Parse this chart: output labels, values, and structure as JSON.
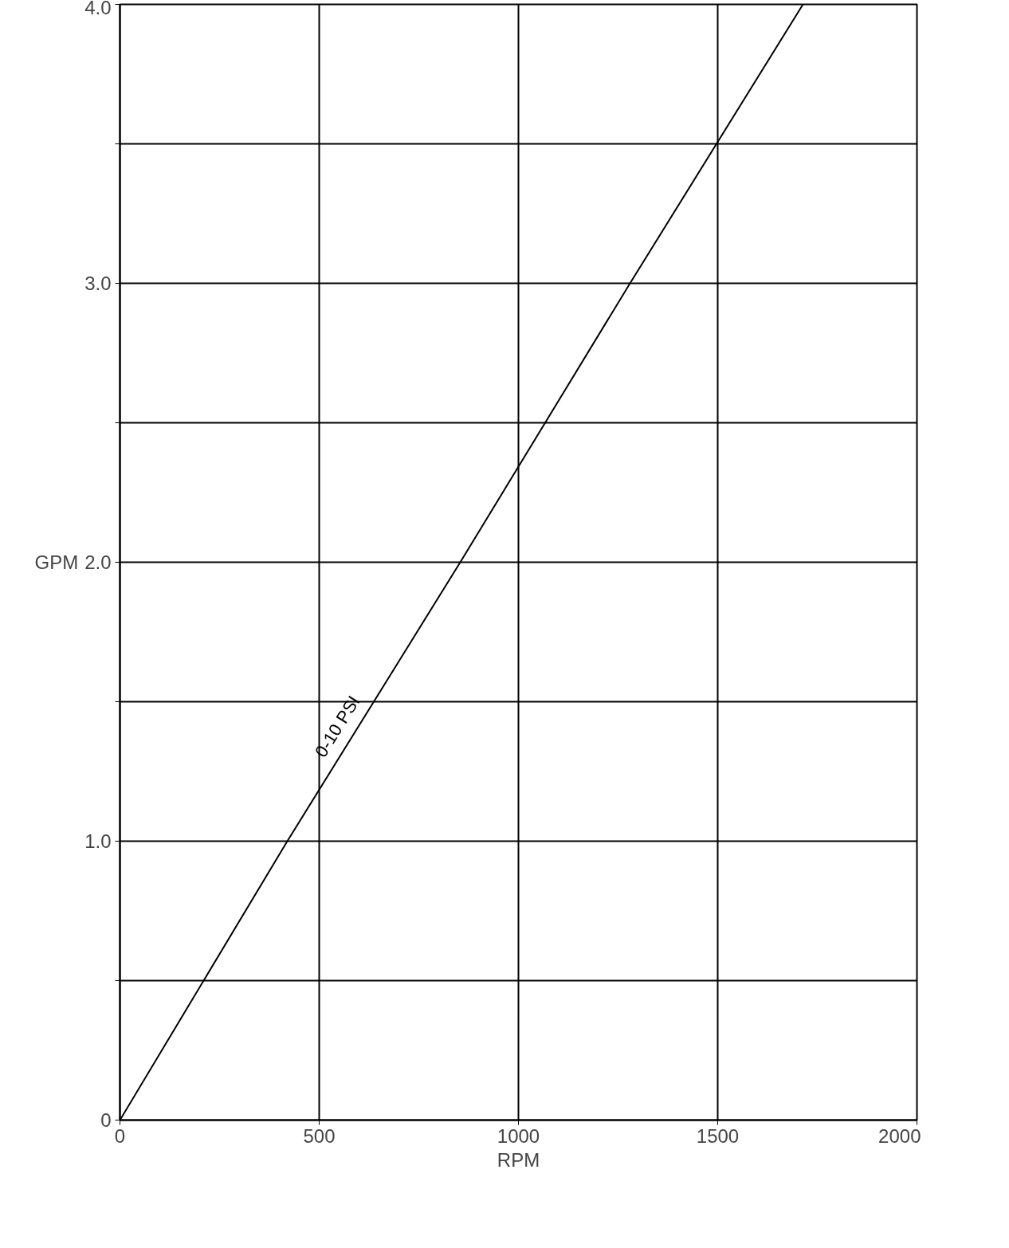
{
  "chart_data": {
    "type": "line",
    "xlabel": "RPM",
    "ylabel": "GPM",
    "x": [
      0,
      420,
      854,
      1280,
      1714
    ],
    "series": [
      {
        "name": "0-10 PSI",
        "color": "#000000",
        "values": [
          0,
          1.0,
          2.0,
          3.0,
          4.0
        ]
      }
    ],
    "xlim": [
      0,
      2000
    ],
    "ylim": [
      0,
      4.0
    ],
    "xticks": [
      0,
      500,
      1000,
      1500,
      2000
    ],
    "yticks": [
      0,
      {
        "value": 0.5,
        "label": null
      },
      {
        "value": 1.0,
        "label": "1.0"
      },
      {
        "value": 1.5,
        "label": null
      },
      {
        "value": 2.0,
        "label": "2.0"
      },
      {
        "value": 2.5,
        "label": null
      },
      {
        "value": 3.0,
        "label": "3.0"
      },
      {
        "value": 3.5,
        "label": null
      },
      {
        "value": 4.0,
        "label": "4.0"
      }
    ],
    "grid": true,
    "marker": "none",
    "line_style": "solid",
    "legend": false
  }
}
